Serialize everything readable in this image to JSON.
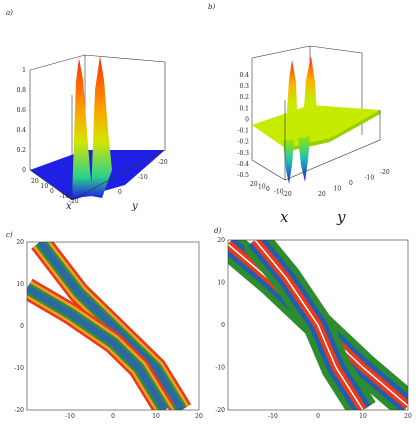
{
  "chart_data": [
    {
      "type": "surface",
      "panel_label": "a)",
      "xlabel": "x",
      "ylabel": "y",
      "x_ticks": [
        "20",
        "10",
        "0",
        "-10",
        "-20"
      ],
      "y_ticks": [
        "0",
        "-10",
        "-20"
      ],
      "z_ticks": [
        "0",
        "0.2",
        "0.4",
        "0.6",
        "0.8",
        "1"
      ],
      "zlim": [
        0,
        1
      ],
      "peaks": [
        {
          "name": "left crest",
          "z": 1.0,
          "color": "#ff3a00"
        },
        {
          "name": "right crest",
          "z": 1.0,
          "color": "#ff3a00"
        }
      ],
      "base_color": "#1f1fe6"
    },
    {
      "type": "surface",
      "panel_label": "b)",
      "xlabel": "x",
      "ylabel": "y",
      "x_ticks": [
        "20",
        "10",
        "0",
        "-10",
        "-20"
      ],
      "y_ticks": [
        "20",
        "10",
        "0",
        "-10",
        "-20"
      ],
      "z_ticks": [
        "0.4",
        "0.3",
        "0.2",
        "0.1",
        "0",
        "-0.1",
        "-0.2",
        "-0.3",
        "-0.4",
        "-0.5"
      ],
      "zlim": [
        -0.5,
        0.45
      ],
      "peaks": [
        {
          "name": "max crest",
          "z": 0.45,
          "color": "#ff3a00"
        },
        {
          "name": "min trough",
          "z": -0.5,
          "color": "#1f1fe6"
        }
      ],
      "base_color": "#b8e600"
    },
    {
      "type": "contour",
      "panel_label": "c)",
      "x_ticks": [
        "-10",
        "0",
        "10",
        "20"
      ],
      "y_ticks": [
        "20",
        "10",
        "0",
        "-10",
        "-20"
      ],
      "xlim": [
        -20,
        20
      ],
      "ylim": [
        -20,
        20
      ],
      "bands": [
        {
          "points": [
            [
              -17,
              20
            ],
            [
              -8,
              8
            ],
            [
              0,
              0
            ],
            [
              10,
              -10
            ],
            [
              16,
              -20
            ]
          ]
        },
        {
          "points": [
            [
              -20,
              9
            ],
            [
              -10,
              3
            ],
            [
              0,
              -4
            ],
            [
              6,
              -10
            ],
            [
              12,
              -20
            ]
          ]
        }
      ],
      "colors": [
        "#e83a1a",
        "#f0a020",
        "#3a8a3a",
        "#2a6aa0"
      ]
    },
    {
      "type": "contour",
      "panel_label": "d)",
      "x_ticks": [
        "-10",
        "0",
        "10",
        "20"
      ],
      "y_ticks": [
        "20",
        "10",
        "0",
        "-10",
        "-20"
      ],
      "xlim": [
        -20,
        20
      ],
      "ylim": [
        -20,
        20
      ],
      "bands": [
        {
          "points": [
            [
              -20,
              19
            ],
            [
              -10,
              10
            ],
            [
              0,
              0
            ],
            [
              10,
              -10
            ],
            [
              20,
              -19
            ]
          ]
        },
        {
          "points": [
            [
              -14,
              20
            ],
            [
              -7,
              11
            ],
            [
              0,
              0
            ],
            [
              4,
              -10
            ],
            [
              10,
              -20
            ]
          ]
        }
      ],
      "colors": [
        "#2e8b2e",
        "#1e5fb0",
        "#e83a1a",
        "#ffffff"
      ]
    }
  ]
}
